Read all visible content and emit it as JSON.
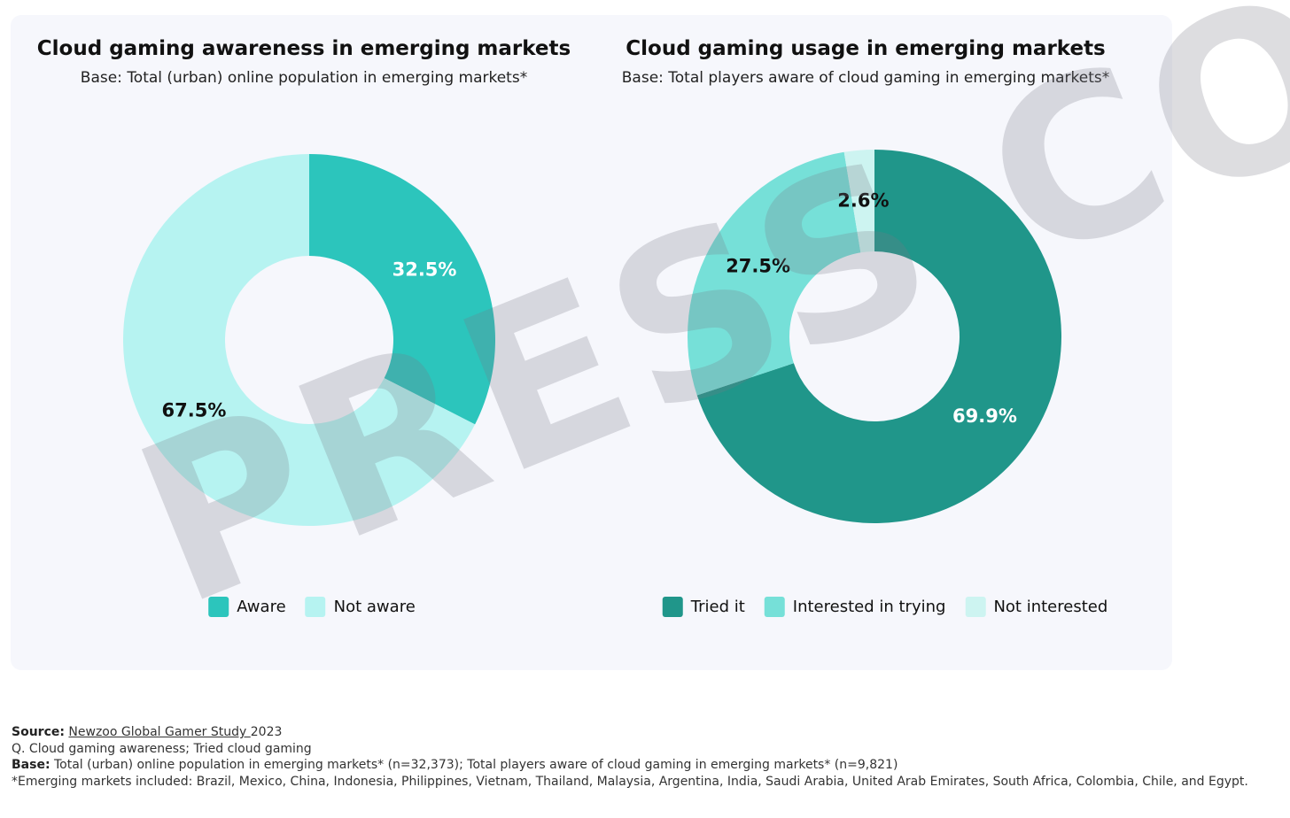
{
  "chart_data": [
    {
      "type": "pie",
      "donut": true,
      "title": "Cloud gaming awareness in emerging markets",
      "subtitle": "Base: Total (urban) online population in emerging markets*",
      "categories": [
        "Aware",
        "Not aware"
      ],
      "values": [
        32.5,
        67.5
      ],
      "labels": [
        "32.5%",
        "67.5%"
      ],
      "colors": [
        "#2cc5bc",
        "#b6f3f1"
      ],
      "legend_position": "bottom"
    },
    {
      "type": "pie",
      "donut": true,
      "title": "Cloud gaming usage in emerging markets",
      "subtitle": "Base: Total players aware of cloud gaming in emerging markets*",
      "categories": [
        "Tried it",
        "Interested in trying",
        "Not interested"
      ],
      "values": [
        69.9,
        27.5,
        2.6
      ],
      "labels": [
        "69.9%",
        "27.5%",
        "2.6%"
      ],
      "colors": [
        "#20968a",
        "#76e0d8",
        "#cdf4f1"
      ],
      "legend_position": "bottom"
    }
  ],
  "footer": {
    "source_label": "Source:",
    "source_link": "Newzoo Global Gamer Study ",
    "source_year": "2023",
    "question": "Q. Cloud gaming awareness; Tried cloud gaming",
    "base_label": "Base:",
    "base_text": " Total (urban) online population in emerging markets* (n=32,373); Total players aware of cloud gaming in emerging markets* (n=9,821)",
    "note": "*Emerging markets included: Brazil, Mexico, China, Indonesia, Philippines, Vietnam, Thailand, Malaysia, Argentina, India, Saudi Arabia, United Arab Emirates, South Africa, Colombia, Chile, and Egypt."
  },
  "watermark": "PRESS CO"
}
